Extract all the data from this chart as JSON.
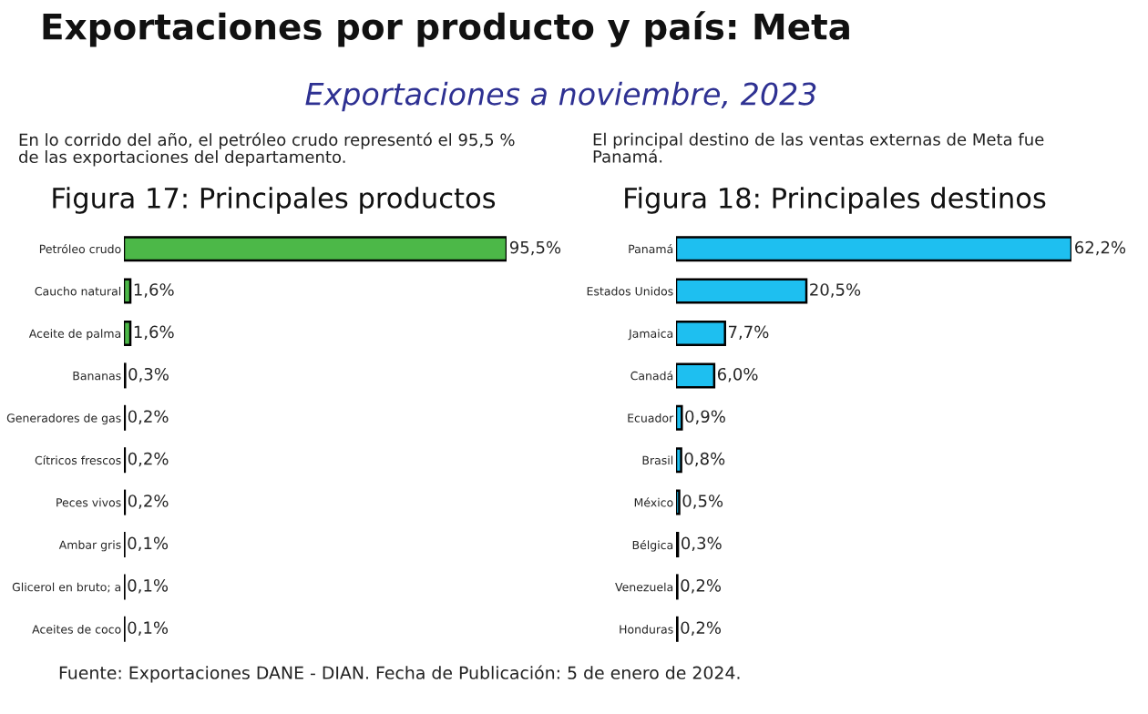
{
  "chart_data": [
    {
      "type": "bar",
      "orientation": "horizontal",
      "title": "Figura 17: Principales productos",
      "annotations": [
        "Exportaciones por producto y país: Meta",
        "Exportaciones a noviembre, 2023",
        "En lo corrido del año, el petróleo crudo representó el 95,5 %\nde las exportaciones del departamento."
      ],
      "categories": [
        "Petróleo crudo",
        "Caucho natural",
        "Aceite de palma",
        "Bananas",
        "Generadores de gas",
        "Cítricos frescos",
        "Peces vivos",
        "Ambar gris",
        "Glicerol en bruto; a",
        "Aceites de coco"
      ],
      "values": [
        95.5,
        1.6,
        1.6,
        0.3,
        0.2,
        0.2,
        0.2,
        0.1,
        0.1,
        0.1
      ],
      "value_labels": [
        "95,5%",
        "1,6%",
        "1,6%",
        "0,3%",
        "0,2%",
        "0,2%",
        "0,2%",
        "0,1%",
        "0,1%",
        "0,1%"
      ],
      "color": "#4cb848"
    },
    {
      "type": "bar",
      "orientation": "horizontal",
      "title": "Figura 18: Principales destinos",
      "annotations": [
        "El principal destino de las ventas externas de Meta fue\nPanamá.",
        "Fuente: Exportaciones DANE - DIAN. Fecha de Publicación: 5 de enero de 2024."
      ],
      "categories": [
        "Panamá",
        "Estados Unidos",
        "Jamaica",
        "Canadá",
        "Ecuador",
        "Brasil",
        "México",
        "Bélgica",
        "Venezuela",
        "Honduras"
      ],
      "values": [
        62.2,
        20.5,
        7.7,
        6.0,
        0.9,
        0.8,
        0.5,
        0.3,
        0.2,
        0.2
      ],
      "value_labels": [
        "62,2%",
        "20,5%",
        "7,7%",
        "6,0%",
        "0,9%",
        "0,8%",
        "0,5%",
        "0,3%",
        "0,2%",
        "0,2%"
      ],
      "color": "#1ebff0"
    }
  ]
}
